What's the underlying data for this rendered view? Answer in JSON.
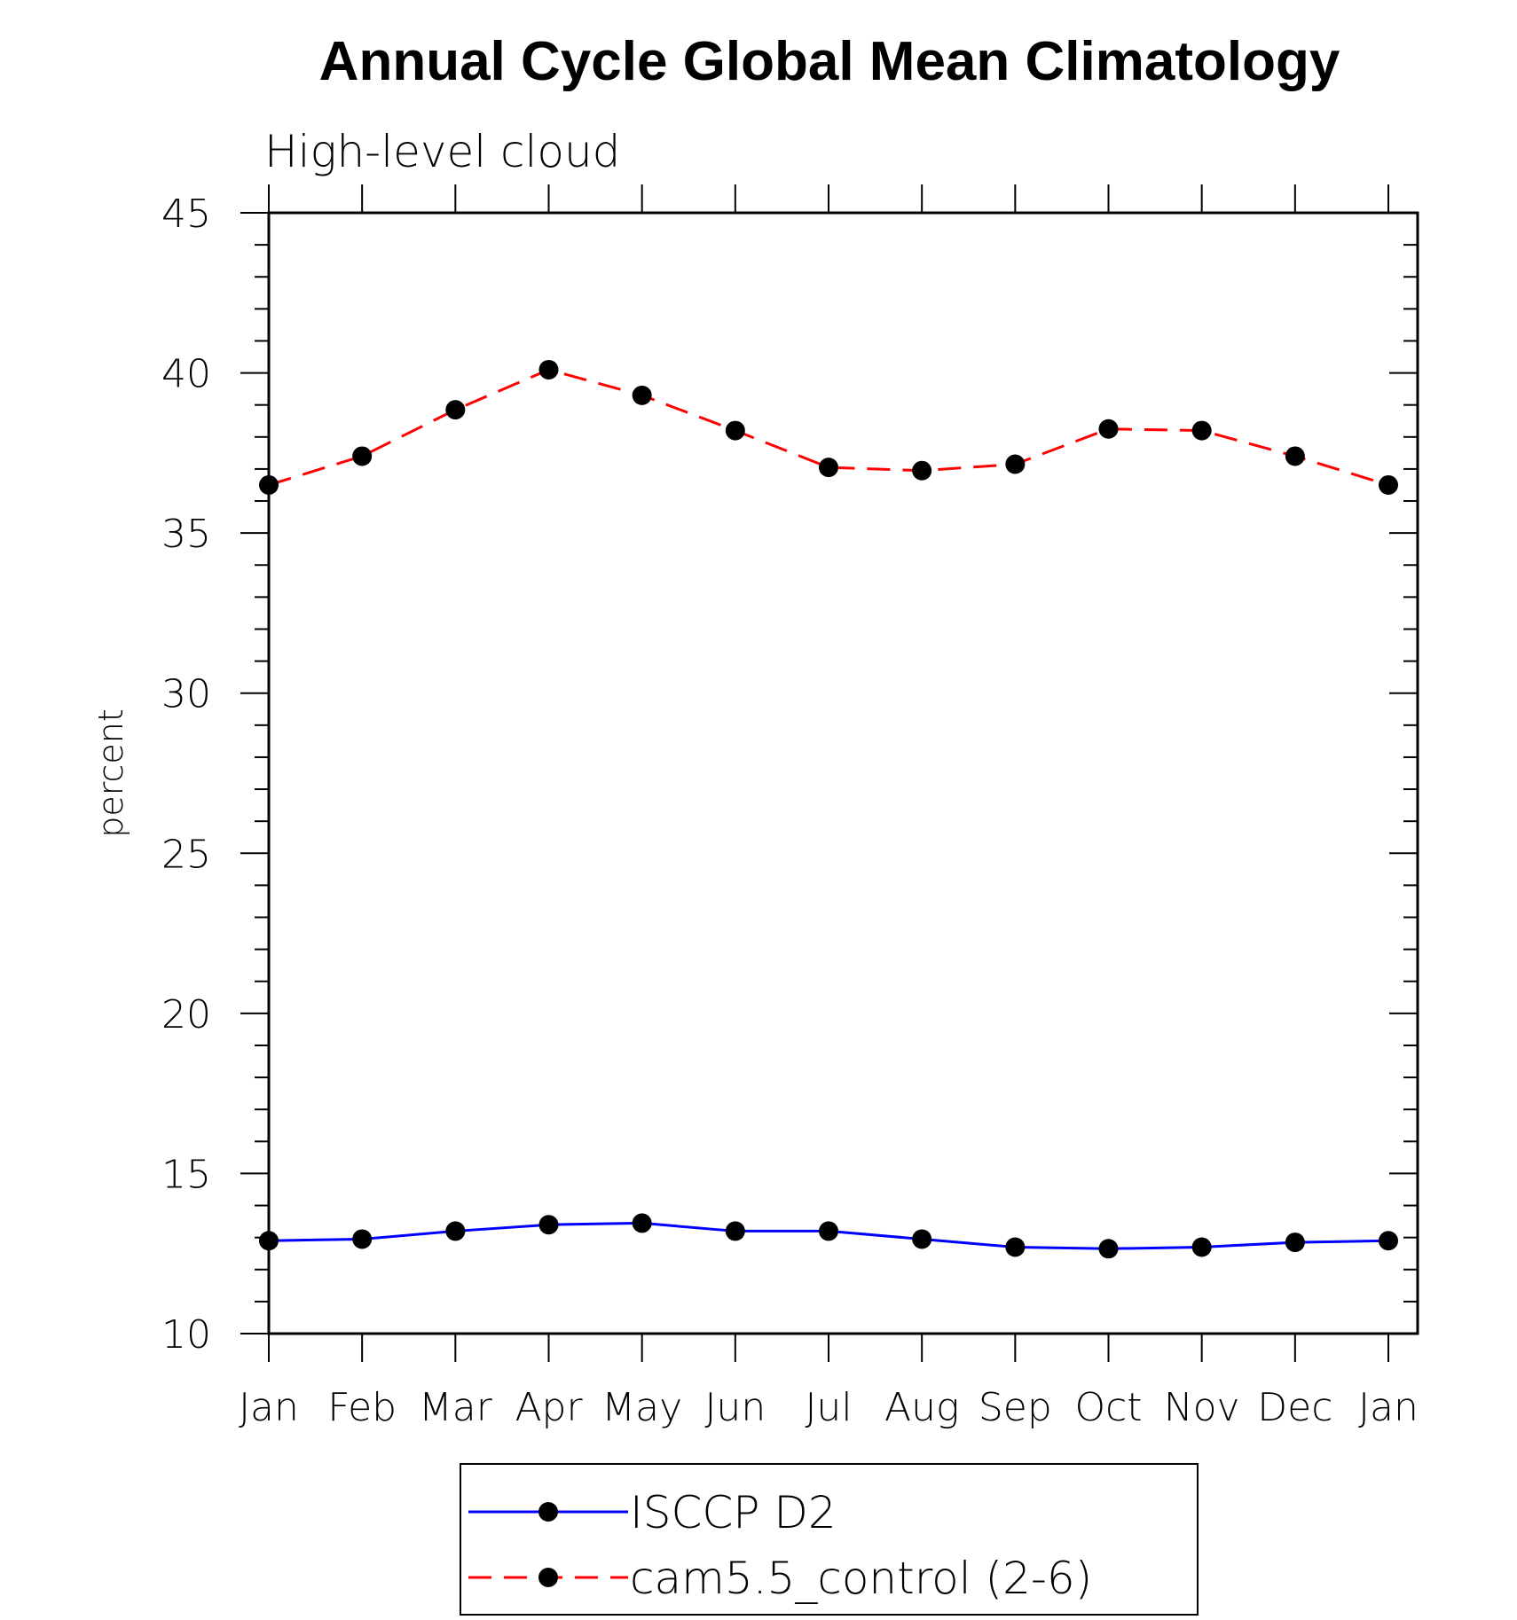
{
  "chart_data": {
    "type": "line",
    "title": "Annual Cycle Global Mean Climatology",
    "subtitle": "High-level cloud",
    "xlabel": "",
    "ylabel": "percent",
    "categories": [
      "Jan",
      "Feb",
      "Mar",
      "Apr",
      "May",
      "Jun",
      "Jul",
      "Aug",
      "Sep",
      "Oct",
      "Nov",
      "Dec",
      "Jan"
    ],
    "ylim": [
      10,
      45
    ],
    "yticks": [
      10,
      15,
      20,
      25,
      30,
      35,
      40,
      45
    ],
    "yticks_minor_step": 1,
    "grid": false,
    "legend_position": "bottom-center",
    "series": [
      {
        "name": "ISCCP D2",
        "color": "#0000ff",
        "line_style": "solid",
        "marker": "filled-circle",
        "values": [
          12.9,
          12.95,
          13.2,
          13.4,
          13.45,
          13.2,
          13.2,
          12.95,
          12.7,
          12.65,
          12.7,
          12.85,
          12.9
        ]
      },
      {
        "name": "cam5.5_control (2-6)",
        "color": "#ff0000",
        "line_style": "dashed",
        "marker": "filled-circle",
        "values": [
          36.5,
          37.4,
          38.85,
          40.1,
          39.3,
          38.2,
          37.05,
          36.95,
          37.15,
          38.25,
          38.2,
          37.4,
          36.5
        ]
      }
    ]
  }
}
